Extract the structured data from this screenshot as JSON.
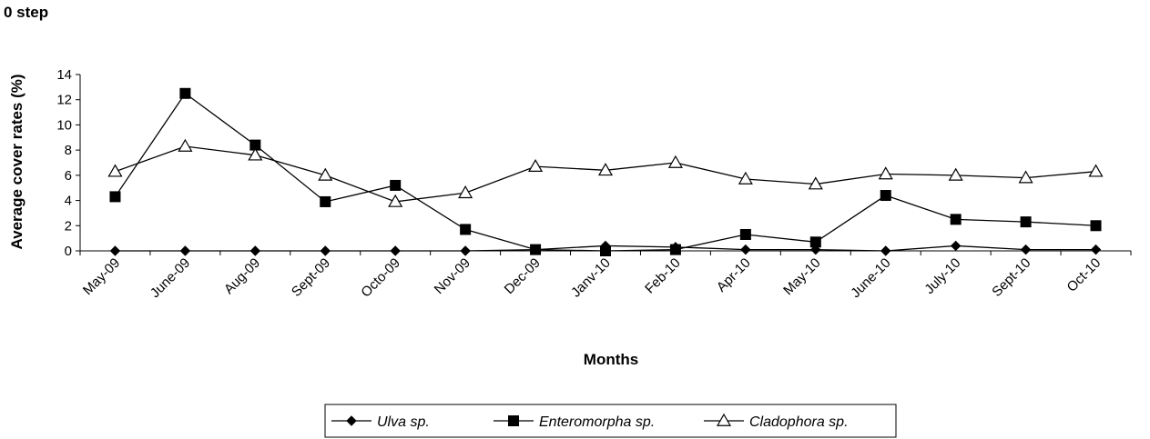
{
  "header": {
    "step_label": "0 step"
  },
  "chart_data": {
    "type": "line",
    "title": "",
    "xlabel": "Months",
    "ylabel": "Average cover rates (%)",
    "ylim": [
      0,
      14
    ],
    "yticks": [
      0,
      2,
      4,
      6,
      8,
      10,
      12,
      14
    ],
    "grid": false,
    "legend_position": "bottom",
    "categories": [
      "May-09",
      "June-09",
      "Aug-09",
      "Sept-09",
      "Octo-09",
      "Nov-09",
      "Dec-09",
      "Janv-10",
      "Feb-10",
      "Apr-10",
      "May-10",
      "June-10",
      "July-10",
      "Sept-10",
      "Oct-10"
    ],
    "series": [
      {
        "name": "Ulva sp.",
        "marker": "diamond",
        "color": "#000000",
        "values": [
          0,
          0,
          0,
          0,
          0,
          0,
          0.1,
          0.4,
          0.3,
          0.1,
          0.1,
          0,
          0.4,
          0.1,
          0.1
        ]
      },
      {
        "name": "Enteromorpha sp.",
        "marker": "square",
        "color": "#000000",
        "values": [
          4.3,
          12.5,
          8.4,
          3.9,
          5.2,
          1.7,
          0.1,
          0,
          0.1,
          1.3,
          0.7,
          4.4,
          2.5,
          2.3,
          2.0
        ]
      },
      {
        "name": "Cladophora sp.",
        "marker": "triangle-open",
        "color": "#000000",
        "values": [
          6.3,
          8.3,
          7.6,
          6.0,
          3.9,
          4.6,
          6.7,
          6.4,
          7.0,
          5.7,
          5.3,
          6.1,
          6.0,
          5.8,
          6.3
        ]
      }
    ]
  }
}
